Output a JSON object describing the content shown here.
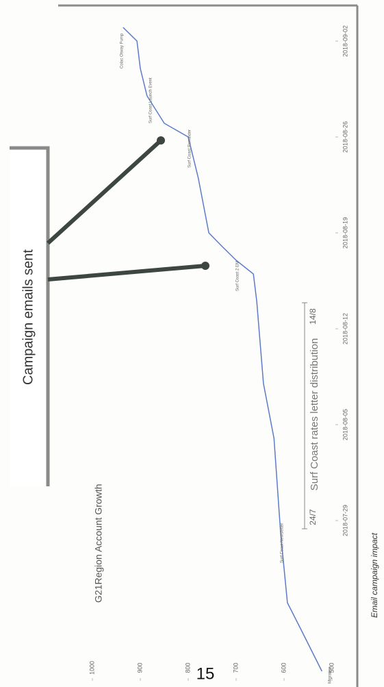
{
  "chart_data": {
    "type": "line",
    "title": "G21Region Account Growth",
    "x": [
      "2018-07-18",
      "2018-07-21",
      "2018-07-23",
      "2018-07-28",
      "2018-08-04",
      "2018-08-08",
      "2018-08-14",
      "2018-08-16",
      "2018-08-17",
      "2018-08-18",
      "2018-08-19",
      "2018-08-23",
      "2018-08-26",
      "2018-08-27",
      "2018-08-29",
      "2018-08-31",
      "2018-09-02",
      "2018-09-03"
    ],
    "values": [
      521,
      564,
      593,
      607,
      621,
      643,
      657,
      664,
      700,
      729,
      757,
      779,
      800,
      850,
      886,
      900,
      907,
      936
    ],
    "color": "#5b7bc8",
    "xlim": [
      "2018-07-18",
      "2018-09-03"
    ],
    "xticks": [
      "2018-07-29",
      "2018-08-05",
      "2018-08-12",
      "2018-08-19",
      "2018-08-26",
      "2018-09-02"
    ],
    "ylim": [
      500,
      1000
    ],
    "yticks": [
      500,
      600,
      700,
      800,
      900,
      1000
    ],
    "annotations": [
      "Migration",
      "Surf Coast Newsletter",
      "Surf Coast 2 EM",
      "Surf Coast Reminder",
      "Surf Coast Launch Event",
      "Colac Otway Pump"
    ],
    "range_annotation": {
      "label": "Surf Coast rates letter distribution",
      "start": "24/7",
      "end": "14/8"
    }
  },
  "page": {
    "callout": "Campaign emails sent",
    "page_number": "15",
    "caption": "Email campaign impact"
  }
}
